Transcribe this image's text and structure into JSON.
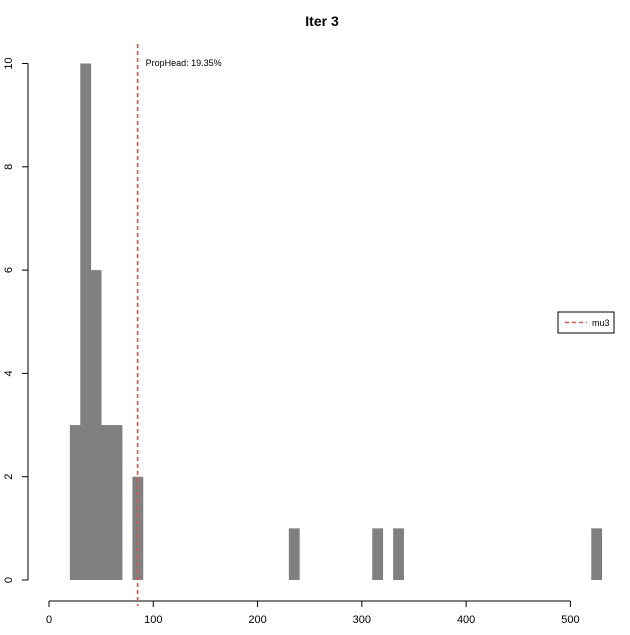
{
  "chart_data": {
    "type": "bar",
    "title": "Iter 3",
    "xlabel": "",
    "ylabel": "",
    "xlim": [
      0,
      530
    ],
    "ylim": [
      0,
      10
    ],
    "x_ticks": [
      0,
      100,
      200,
      300,
      400,
      500
    ],
    "y_ticks": [
      0,
      2,
      4,
      6,
      8,
      10
    ],
    "bins": [
      {
        "x0": 20,
        "x1": 30,
        "count": 3
      },
      {
        "x0": 30,
        "x1": 40,
        "count": 10
      },
      {
        "x0": 40,
        "x1": 50,
        "count": 6
      },
      {
        "x0": 50,
        "x1": 60,
        "count": 3
      },
      {
        "x0": 60,
        "x1": 70,
        "count": 3
      },
      {
        "x0": 80,
        "x1": 90,
        "count": 2
      },
      {
        "x0": 230,
        "x1": 240,
        "count": 1
      },
      {
        "x0": 310,
        "x1": 320,
        "count": 1
      },
      {
        "x0": 330,
        "x1": 340,
        "count": 1
      },
      {
        "x0": 520,
        "x1": 530,
        "count": 1
      }
    ],
    "bar_color": "#808080",
    "vline": {
      "x": 85,
      "color": "#d9534f",
      "style": "dashed"
    },
    "annotation": "PropHead: 19.35%",
    "legend": {
      "position": "right",
      "entries": [
        {
          "label": "mu3",
          "color": "#d9534f",
          "style": "dashed"
        }
      ]
    },
    "grid": false
  }
}
